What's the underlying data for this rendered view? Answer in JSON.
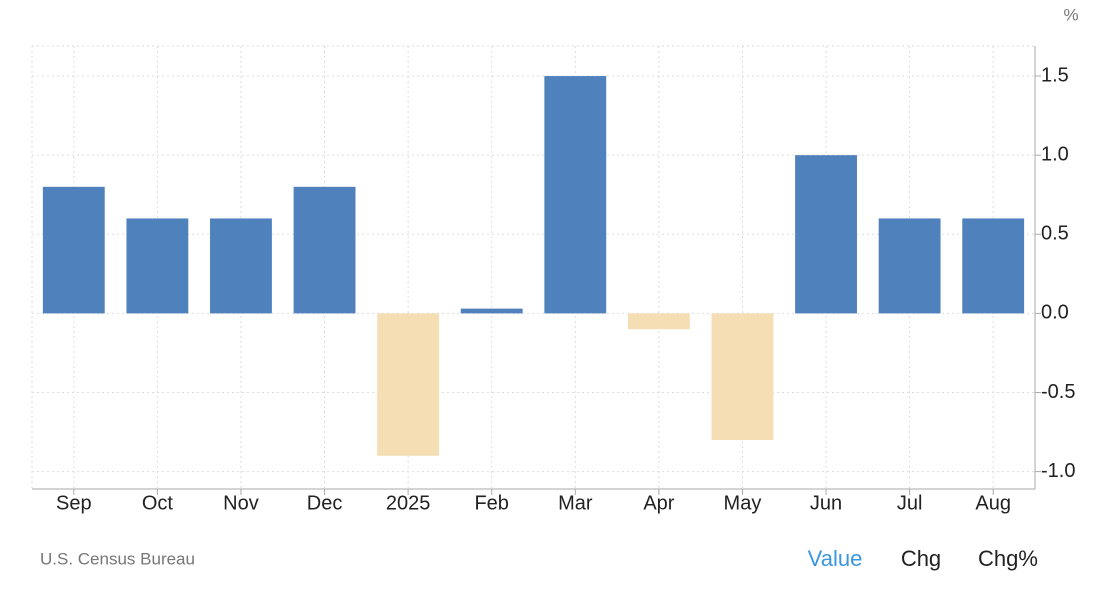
{
  "chart_data": {
    "type": "bar",
    "unit": "%",
    "categories": [
      "Sep",
      "Oct",
      "Nov",
      "Dec",
      "2025",
      "Feb",
      "Mar",
      "Apr",
      "May",
      "Jun",
      "Jul",
      "Aug"
    ],
    "values": [
      0.8,
      0.6,
      0.6,
      0.8,
      -0.9,
      0.03,
      1.5,
      -0.1,
      -0.8,
      1.0,
      0.6,
      0.6
    ],
    "color": "#4f81bd",
    "negative_color": "#f5deb3",
    "ylim": [
      -1.11,
      1.69
    ],
    "yticks": [
      {
        "value": -1,
        "label": "-1.0"
      },
      -0.5,
      {
        "value": 0,
        "label": "0.0"
      },
      0.5,
      {
        "value": 1,
        "label": "1.0"
      },
      1.5
    ],
    "grid": true,
    "source": "U.S. Census Bureau",
    "buttons": [
      "Value",
      "Chg",
      "Chg%"
    ]
  }
}
